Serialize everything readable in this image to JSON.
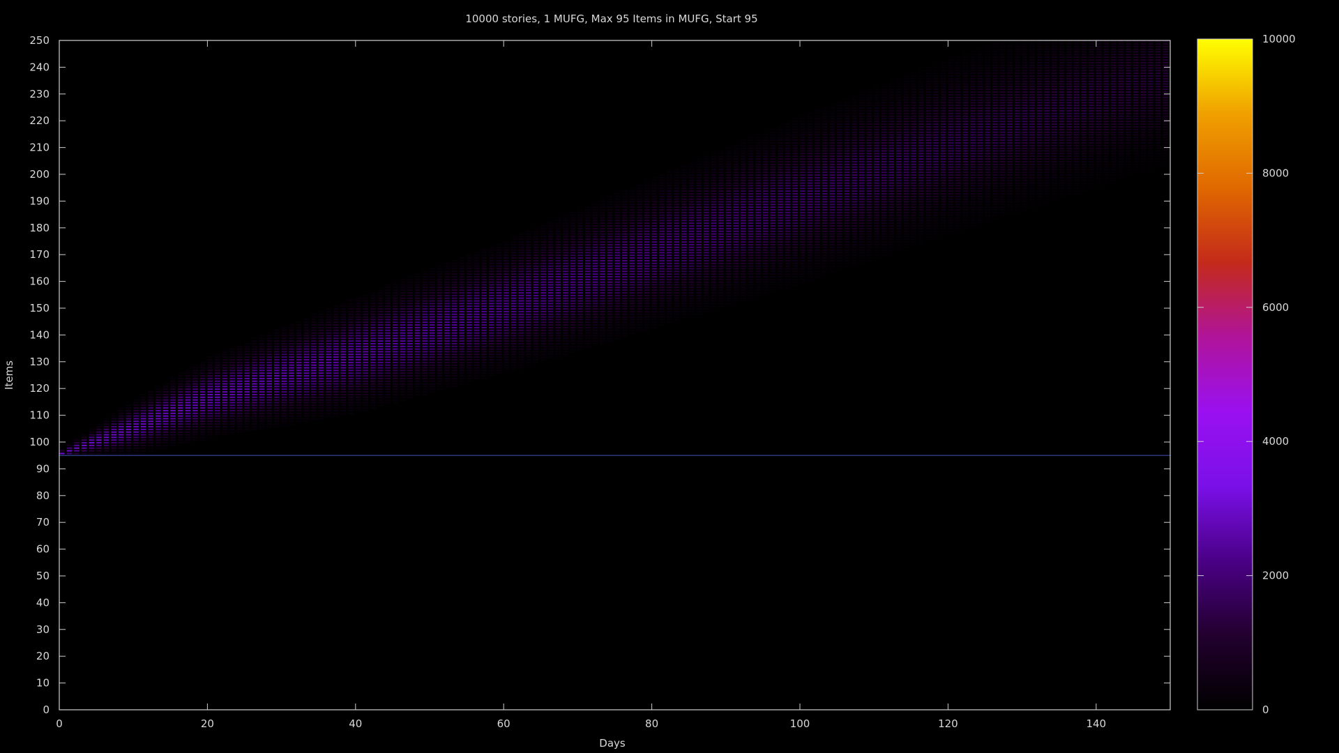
{
  "chart_data": {
    "type": "heatmap",
    "title": "10000 stories, 1 MUFG, Max 95 Items in MUFG, Start 95",
    "xlabel": "Days",
    "ylabel": "Items",
    "xlim": [
      0,
      150
    ],
    "ylim": [
      0,
      250
    ],
    "x_ticks": [
      "0",
      "20",
      "40",
      "60",
      "80",
      "100",
      "120",
      "140"
    ],
    "y_ticks": [
      "0",
      "10",
      "20",
      "30",
      "40",
      "50",
      "60",
      "70",
      "80",
      "90",
      "100",
      "110",
      "120",
      "130",
      "140",
      "150",
      "160",
      "170",
      "180",
      "190",
      "200",
      "210",
      "220",
      "230",
      "240",
      "250"
    ],
    "colorbar": {
      "range": [
        0,
        10000
      ],
      "ticks": [
        "0",
        "2000",
        "4000",
        "6000",
        "8000",
        "10000"
      ],
      "palette": [
        "#000000",
        "#22002e",
        "#4a0086",
        "#7a10e8",
        "#9a10f0",
        "#b0149a",
        "#c42a1a",
        "#e06800",
        "#f0a000",
        "#ffff00"
      ]
    },
    "reference_line": {
      "y": 95,
      "color": "#3a4aa8"
    },
    "band": {
      "description_points": [
        {
          "day": 0,
          "center": 95,
          "half_width": 1
        },
        {
          "day": 10,
          "center": 105,
          "half_width": 6
        },
        {
          "day": 20,
          "center": 116,
          "half_width": 9
        },
        {
          "day": 40,
          "center": 132,
          "half_width": 13
        },
        {
          "day": 60,
          "center": 150,
          "half_width": 15
        },
        {
          "day": 80,
          "center": 170,
          "half_width": 17
        },
        {
          "day": 100,
          "center": 190,
          "half_width": 19
        },
        {
          "day": 120,
          "center": 210,
          "half_width": 20
        },
        {
          "day": 145,
          "center": 232,
          "half_width": 20
        }
      ],
      "peak_value_start": 3000,
      "peak_value_end": 1200
    }
  }
}
